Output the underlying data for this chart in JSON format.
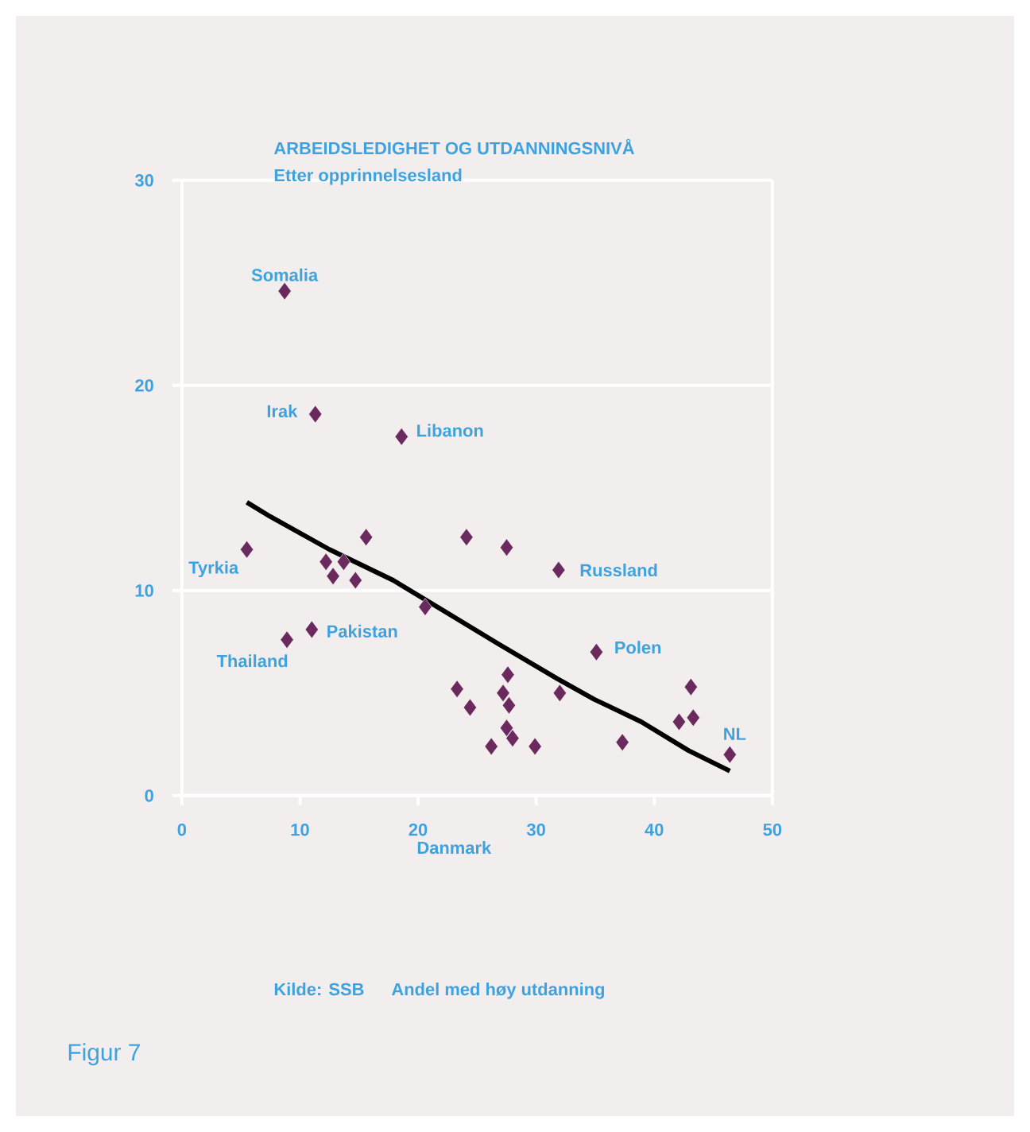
{
  "chart_data": {
    "type": "scatter",
    "title": "ARBEIDSLEDIGHET OG UTDANNINGSNIVÅ",
    "subtitle": "Etter opprinnelsesland",
    "xlim": [
      0,
      50
    ],
    "ylim": [
      0,
      30
    ],
    "xticks": [
      0,
      10,
      20,
      30,
      40,
      50
    ],
    "yticks": [
      0,
      10,
      20,
      30
    ],
    "grid": "y",
    "marker": "diamond",
    "series": [
      {
        "color": "#6b2a5e",
        "x": [
          8.7,
          11.3,
          18.6,
          5.5,
          15.6,
          24.1,
          27.5,
          31.9,
          12.2,
          13.7,
          12.8,
          14.7,
          20.6,
          11.0,
          8.9,
          35.1,
          27.6,
          23.3,
          27.2,
          24.4,
          27.7,
          32.0,
          27.5,
          28.0,
          26.2,
          29.9,
          37.3,
          43.1,
          42.1,
          43.3,
          46.4
        ],
        "values": [
          24.6,
          18.6,
          17.5,
          12.0,
          12.6,
          12.6,
          12.1,
          11.0,
          11.4,
          11.4,
          10.7,
          10.5,
          9.2,
          8.1,
          7.6,
          7.0,
          5.9,
          5.2,
          5.0,
          4.3,
          4.4,
          5.0,
          3.3,
          2.8,
          2.4,
          2.4,
          2.6,
          5.3,
          3.6,
          3.8,
          2.0
        ]
      },
      {
        "type": "line",
        "color": "#000000",
        "marker": "none",
        "x": [
          5.5,
          7.5,
          12.5,
          17.9,
          26.8,
          31.8,
          34.9,
          38.9,
          42.9,
          46.4
        ],
        "values": [
          14.3,
          13.6,
          12.0,
          10.5,
          7.4,
          5.7,
          4.7,
          3.6,
          2.2,
          1.2
        ]
      }
    ],
    "annotations": [
      "Kilde: SSB",
      "Andel med høy utdanning",
      "Figur 7",
      "Danmark",
      {
        "text": "Somalia",
        "x": 8.7,
        "y": 24.6
      },
      {
        "text": "Irak",
        "x": 11.3,
        "y": 18.6
      },
      {
        "text": "Libanon",
        "x": 18.6,
        "y": 17.5
      },
      {
        "text": "Tyrkia",
        "x": 5.5,
        "y": 12.0
      },
      {
        "text": "Russland",
        "x": 31.9,
        "y": 11.0
      },
      {
        "text": "Pakistan",
        "x": 11.0,
        "y": 8.1
      },
      {
        "text": "Thailand",
        "x": 8.9,
        "y": 7.6
      },
      {
        "text": "Polen",
        "x": 35.1,
        "y": 7.0
      },
      {
        "text": "NL",
        "x": 46.4,
        "y": 2.0
      }
    ]
  }
}
